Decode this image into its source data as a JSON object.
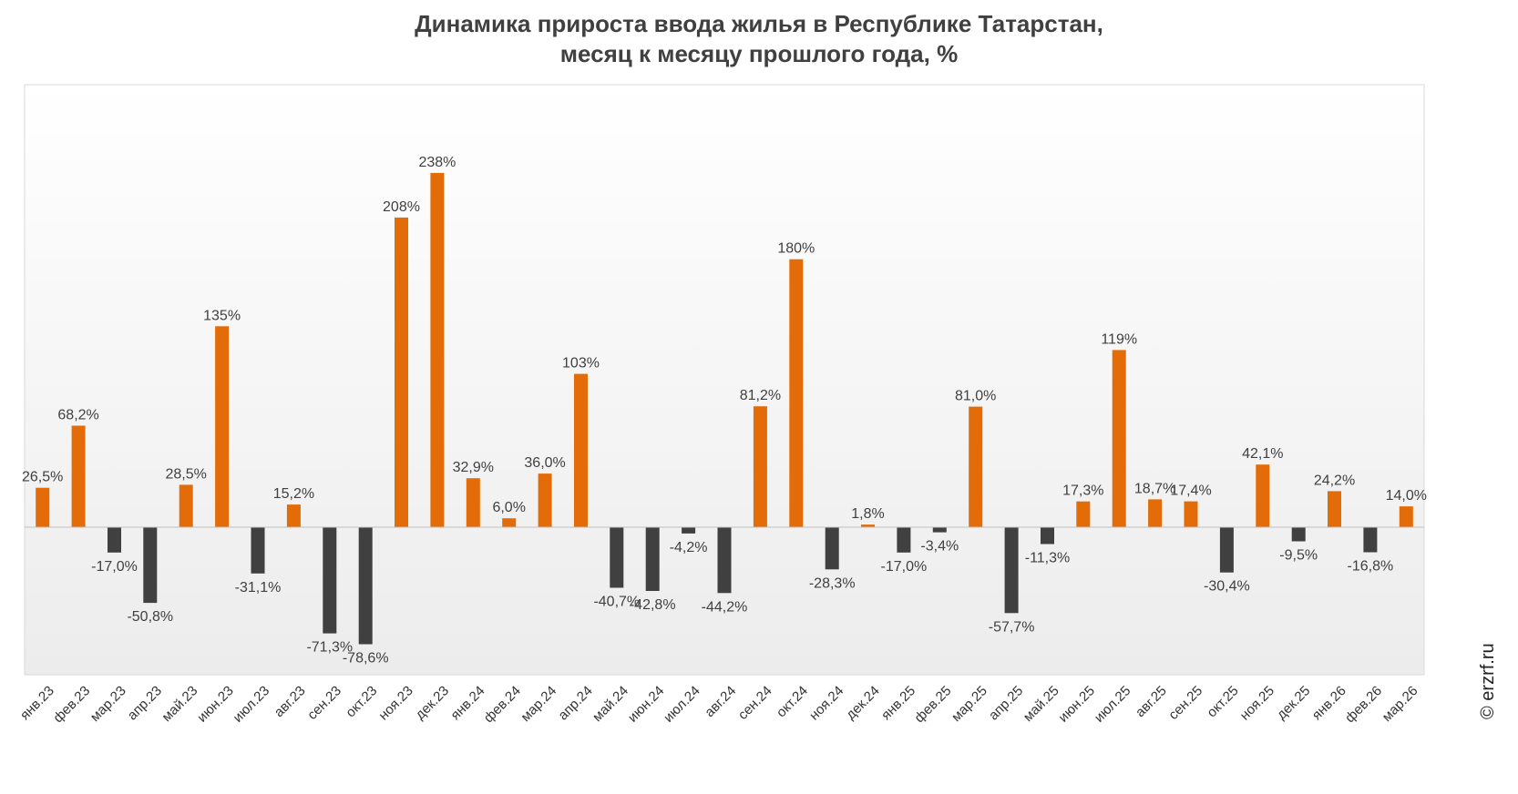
{
  "title_line1": "Динамика прироста ввода жилья в Республике Татарстан,",
  "title_line2": "месяц к месяцу прошлого года, %",
  "copyright": "© erzrf.ru",
  "colors": {
    "positive": "#E36C09",
    "negative": "#404040",
    "text": "#404040",
    "background_top": "#ffffff",
    "background_bottom": "#ececec"
  },
  "chart_data": {
    "type": "bar",
    "title": "Динамика прироста ввода жилья в Республике Татарстан, месяц к месяцу прошлого года, %",
    "xlabel": "",
    "ylabel": "",
    "ylim": [
      -100,
      300
    ],
    "grid": false,
    "categories": [
      "янв.23",
      "фев.23",
      "мар.23",
      "апр.23",
      "май.23",
      "июн.23",
      "июл.23",
      "авг.23",
      "сен.23",
      "окт.23",
      "ноя.23",
      "дек.23",
      "янв.24",
      "фев.24",
      "мар.24",
      "апр.24",
      "май.24",
      "июн.24",
      "июл.24",
      "авг.24",
      "сен.24",
      "окт.24",
      "ноя.24",
      "дек.24",
      "янв.25",
      "фев.25",
      "мар.25",
      "апр.25",
      "май.25",
      "июн.25",
      "июл.25",
      "авг.25",
      "сен.25",
      "окт.25",
      "ноя.25",
      "дек.25",
      "янв.26",
      "фев.26",
      "мар.26"
    ],
    "values": [
      26.5,
      68.2,
      -17.0,
      -50.8,
      28.5,
      135,
      -31.1,
      15.2,
      -71.3,
      -78.6,
      208,
      238,
      32.9,
      6.0,
      36.0,
      103,
      -40.7,
      -42.8,
      -4.2,
      -44.2,
      81.2,
      180,
      -28.3,
      1.8,
      -17.0,
      -3.4,
      81.0,
      -57.7,
      -11.3,
      17.3,
      119,
      18.7,
      17.4,
      -30.4,
      42.1,
      -9.5,
      24.2,
      -16.8,
      14.0
    ],
    "labels": [
      "26,5%",
      "68,2%",
      "-17,0%",
      "-50,8%",
      "28,5%",
      "135%",
      "-31,1%",
      "15,2%",
      "-71,3%",
      "-78,6%",
      "208%",
      "238%",
      "32,9%",
      "6,0%",
      "36,0%",
      "103%",
      "-40,7%",
      "-42,8%",
      "-4,2%",
      "-44,2%",
      "81,2%",
      "180%",
      "-28,3%",
      "1,8%",
      "-17,0%",
      "-3,4%",
      "81,0%",
      "-57,7%",
      "-11,3%",
      "17,3%",
      "119%",
      "18,7%",
      "17,4%",
      "-30,4%",
      "42,1%",
      "-9,5%",
      "24,2%",
      "-16,8%",
      "14,0%"
    ]
  }
}
